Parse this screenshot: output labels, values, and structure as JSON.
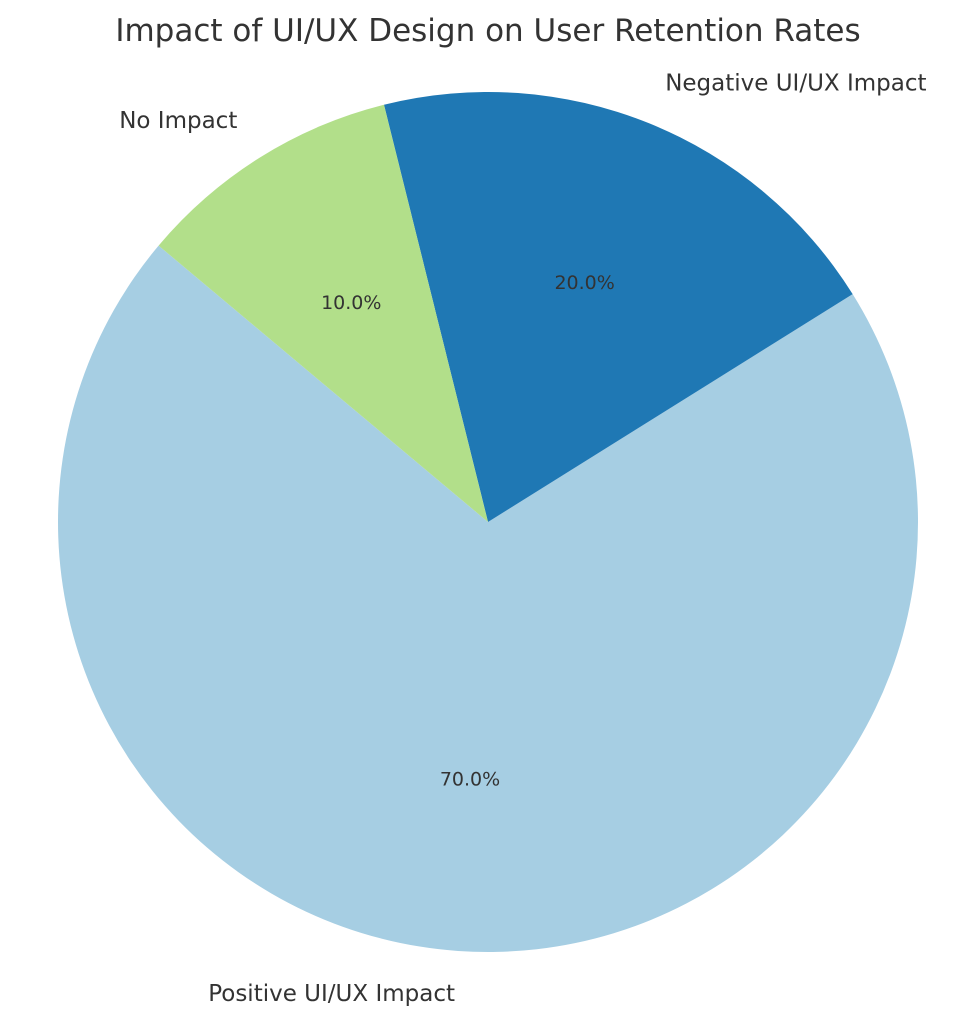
{
  "chart_data": {
    "type": "pie",
    "title": "Impact of UI/UX Design on User Retention Rates",
    "slices": [
      {
        "label": "Positive UI/UX Impact",
        "value": 70,
        "pct_label": "70.0%",
        "color": "#a6cee3"
      },
      {
        "label": "Negative UI/UX Impact",
        "value": 20,
        "pct_label": "20.0%",
        "color": "#1f78b4"
      },
      {
        "label": "No Impact",
        "value": 10,
        "pct_label": "10.0%",
        "color": "#b2df8a"
      }
    ],
    "start_angle_deg": 140,
    "direction": "counterclockwise",
    "legend": "none"
  }
}
